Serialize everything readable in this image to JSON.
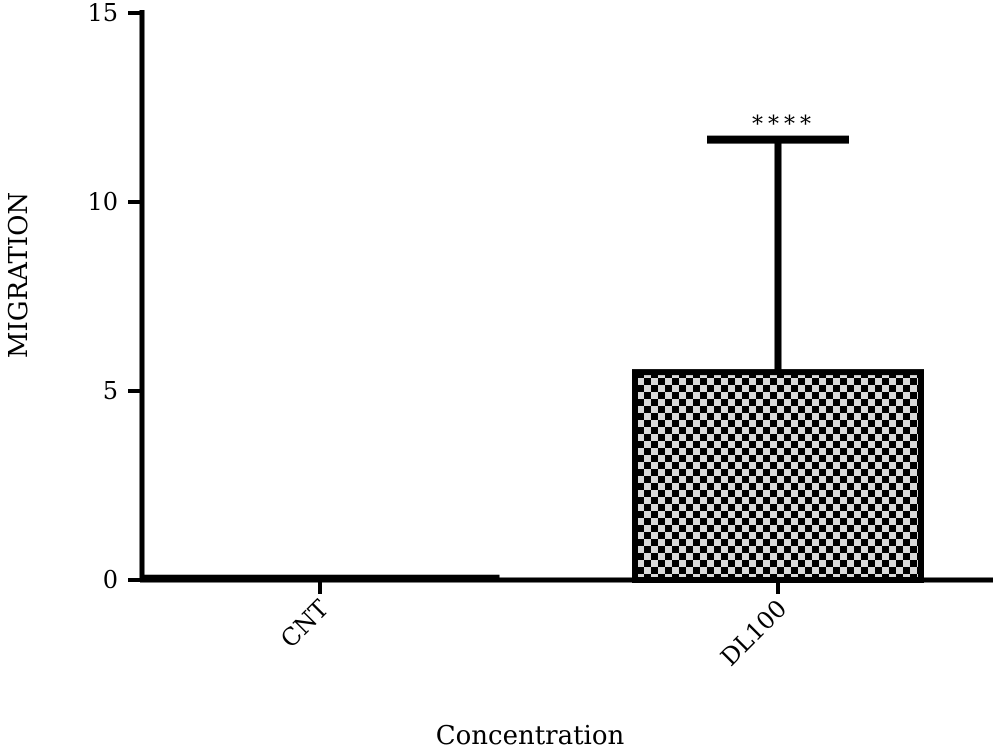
{
  "chart_data": {
    "type": "bar",
    "xlabel": "Concentration",
    "ylabel": "MIGRATION",
    "ylim": [
      0,
      15
    ],
    "yticks": [
      0,
      5,
      10,
      15
    ],
    "categories": [
      "CNT",
      "DL100"
    ],
    "values": [
      0.1,
      5.5
    ],
    "error_upper": [
      0.1,
      11.65
    ],
    "annotations": [
      "",
      "****"
    ],
    "fill_patterns": [
      "solid",
      "checker"
    ],
    "colors": {
      "bar": "#000000",
      "checker_light": "#d9d9d9",
      "axis": "#000000"
    },
    "grid": false,
    "legend": "none"
  }
}
